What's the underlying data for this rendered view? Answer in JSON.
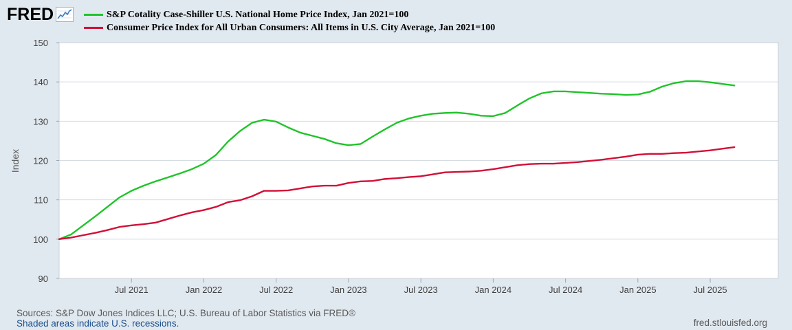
{
  "logo": {
    "text": "FRED",
    "icon": "fred-chart-icon"
  },
  "colors": {
    "series1": "#1fc429",
    "series2": "#d20f37",
    "plot_bg": "#ffffff",
    "grid": "#d5dce2",
    "axis": "#404040",
    "page_bg": "#e1e9f0"
  },
  "chart_data": {
    "type": "line",
    "title": "",
    "ylabel": "Index",
    "xlabel": "",
    "ylim": [
      90,
      150
    ],
    "yticks": [
      90,
      100,
      110,
      120,
      130,
      140,
      150
    ],
    "xlim": [
      2021.0,
      2025.97
    ],
    "xticks": [
      {
        "x": 2021.5,
        "label": "Jul 2021"
      },
      {
        "x": 2022.0,
        "label": "Jan 2022"
      },
      {
        "x": 2022.5,
        "label": "Jul 2022"
      },
      {
        "x": 2023.0,
        "label": "Jan 2023"
      },
      {
        "x": 2023.5,
        "label": "Jul 2023"
      },
      {
        "x": 2024.0,
        "label": "Jan 2024"
      },
      {
        "x": 2024.5,
        "label": "Jul 2024"
      },
      {
        "x": 2025.0,
        "label": "Jan 2025"
      },
      {
        "x": 2025.5,
        "label": "Jul 2025"
      }
    ],
    "series": [
      {
        "name": "S&P Cotality Case-Shiller U.S. National Home Price Index, Jan 2021=100",
        "color": "#1fc429",
        "values": [
          100.0,
          101.2,
          103.5,
          105.8,
          108.2,
          110.6,
          112.3,
          113.6,
          114.7,
          115.7,
          116.7,
          117.8,
          119.2,
          121.4,
          124.8,
          127.5,
          129.6,
          130.4,
          129.9,
          128.4,
          127.1,
          126.3,
          125.5,
          124.4,
          123.9,
          124.2,
          126.1,
          127.9,
          129.6,
          130.7,
          131.4,
          131.9,
          132.1,
          132.2,
          131.9,
          131.4,
          131.3,
          132.1,
          134.0,
          135.8,
          137.1,
          137.6,
          137.6,
          137.4,
          137.2,
          137.0,
          136.9,
          136.7,
          136.8,
          137.5,
          138.8,
          139.7,
          140.2,
          140.2,
          139.9,
          139.5,
          139.1
        ],
        "labeled_points_note": "monthly Jan 2021 - Sep 2025"
      },
      {
        "name": "Consumer Price Index for All Urban Consumers: All Items in U.S. City Average, Jan 2021=100",
        "color": "#d20f37",
        "values": [
          100.0,
          100.4,
          101.0,
          101.6,
          102.3,
          103.1,
          103.5,
          103.8,
          104.2,
          105.1,
          106.0,
          106.8,
          107.4,
          108.2,
          109.4,
          109.9,
          110.9,
          112.3,
          112.3,
          112.4,
          112.9,
          113.4,
          113.6,
          113.6,
          114.3,
          114.7,
          114.8,
          115.3,
          115.5,
          115.8,
          116.0,
          116.5,
          117.0,
          117.1,
          117.2,
          117.4,
          117.8,
          118.3,
          118.8,
          119.1,
          119.2,
          119.2,
          119.4,
          119.6,
          119.9,
          120.2,
          120.6,
          121.0,
          121.5,
          121.7,
          121.7,
          121.9,
          122.0,
          122.3,
          122.6,
          123.0,
          123.4
        ]
      }
    ],
    "legend_position": "top-left",
    "grid": true
  },
  "footer": {
    "sources": "Sources: S&P Dow Jones Indices LLC; U.S. Bureau of Labor Statistics via FRED®",
    "recession_note": "Shaded areas indicate U.S. recessions.",
    "url": "fred.stlouisfed.org"
  }
}
